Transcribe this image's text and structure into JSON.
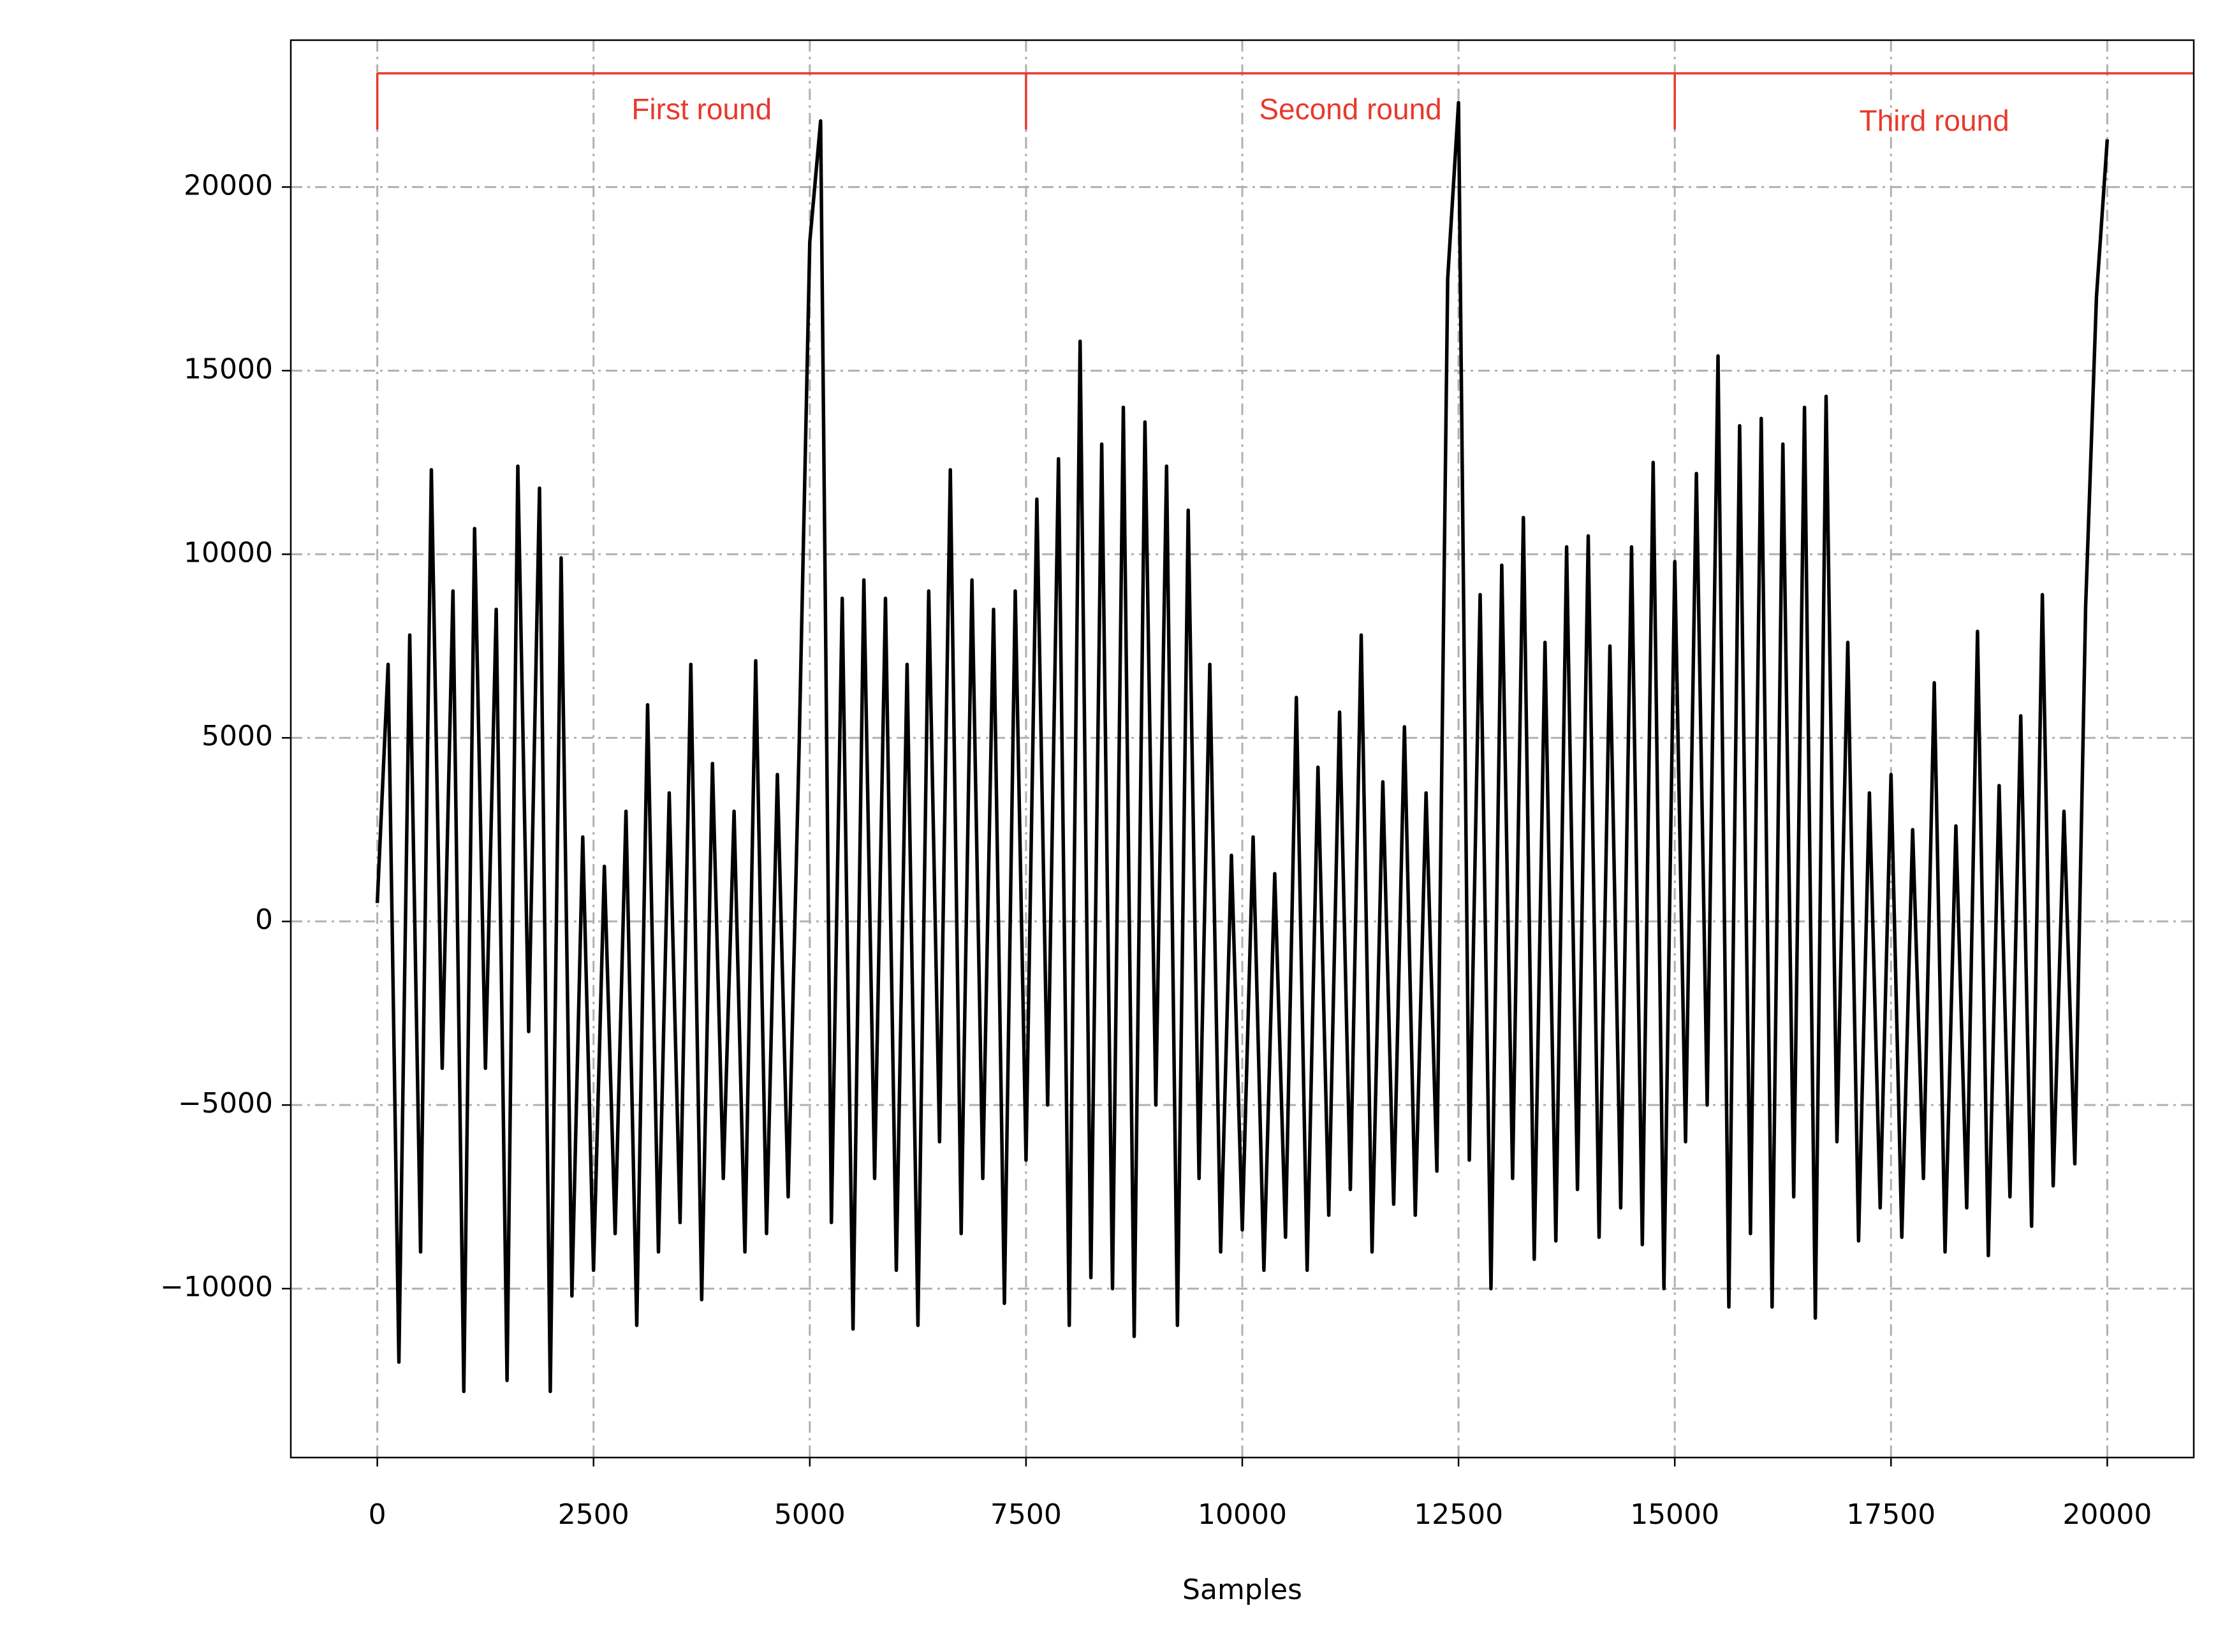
{
  "chart_data": {
    "type": "line",
    "x_label": "Samples",
    "x": [
      0,
      125,
      250,
      375,
      500,
      625,
      750,
      875,
      1000,
      1125,
      1250,
      1375,
      1500,
      1625,
      1750,
      1875,
      2000,
      2125,
      2250,
      2375,
      2500,
      2625,
      2750,
      2875,
      3000,
      3125,
      3250,
      3375,
      3500,
      3625,
      3750,
      3875,
      4000,
      4125,
      4250,
      4375,
      4500,
      4625,
      4750,
      4875,
      5000,
      5125,
      5250,
      5375,
      5500,
      5625,
      5750,
      5875,
      6000,
      6125,
      6250,
      6375,
      6500,
      6625,
      6750,
      6875,
      7000,
      7125,
      7250,
      7375,
      7500,
      7625,
      7750,
      7875,
      8000,
      8125,
      8250,
      8375,
      8500,
      8625,
      8750,
      8875,
      9000,
      9125,
      9250,
      9375,
      9500,
      9625,
      9750,
      9875,
      10000,
      10125,
      10250,
      10375,
      10500,
      10625,
      10750,
      10875,
      11000,
      11125,
      11250,
      11375,
      11500,
      11625,
      11750,
      11875,
      12000,
      12125,
      12250,
      12375,
      12500,
      12625,
      12750,
      12875,
      13000,
      13125,
      13250,
      13375,
      13500,
      13625,
      13750,
      13875,
      14000,
      14125,
      14250,
      14375,
      14500,
      14625,
      14750,
      14875,
      15000,
      15125,
      15250,
      15375,
      15500,
      15625,
      15750,
      15875,
      16000,
      16125,
      16250,
      16375,
      16500,
      16625,
      16750,
      16875,
      17000,
      17125,
      17250,
      17375,
      17500,
      17625,
      17750,
      17875,
      18000,
      18125,
      18250,
      18375,
      18500,
      18625,
      18750,
      18875,
      19000,
      19125,
      19250,
      19375,
      19500,
      19625,
      19750,
      19875,
      20000
    ],
    "series": [
      {
        "color": "#000000",
        "values": [
          500,
          7000,
          -12000,
          7800,
          -9000,
          12300,
          -4000,
          9000,
          -12800,
          10700,
          -4000,
          8500,
          -12500,
          12400,
          -3000,
          11800,
          -12800,
          9900,
          -10200,
          2300,
          -9500,
          1500,
          -8500,
          3000,
          -11000,
          5900,
          -9000,
          3500,
          -8200,
          7000,
          -10300,
          4300,
          -7000,
          3000,
          -9000,
          7100,
          -8500,
          4000,
          -7500,
          4600,
          18500,
          21800,
          -8200,
          8800,
          -11100,
          9300,
          -7000,
          8800,
          -9500,
          7000,
          -11000,
          9000,
          -6000,
          12300,
          -8500,
          9300,
          -7000,
          8500,
          -10400,
          9000,
          -6500,
          11500,
          -5000,
          12600,
          -11000,
          15800,
          -9700,
          13000,
          -10000,
          14000,
          -11300,
          13600,
          -5000,
          12400,
          -11000,
          11200,
          -7000,
          7000,
          -9000,
          1800,
          -8400,
          2300,
          -9500,
          1300,
          -8600,
          6100,
          -9500,
          4200,
          -8000,
          5700,
          -7300,
          7800,
          -9000,
          3800,
          -7700,
          5300,
          -8000,
          3500,
          -6800,
          17500,
          22300,
          -6500,
          8900,
          -10000,
          9700,
          -7000,
          11000,
          -9200,
          7600,
          -8700,
          10200,
          -7300,
          10500,
          -8600,
          7500,
          -7800,
          10200,
          -8800,
          12500,
          -10000,
          9800,
          -6000,
          12200,
          -5000,
          15400,
          -10500,
          13500,
          -8500,
          13700,
          -10500,
          13000,
          -7500,
          14000,
          -10800,
          14300,
          -6000,
          7600,
          -8700,
          3500,
          -7800,
          4000,
          -8600,
          2500,
          -7000,
          6500,
          -9000,
          2600,
          -7800,
          7900,
          -9100,
          3700,
          -7500,
          5600,
          -8300,
          8900,
          -7200,
          3000,
          -6600,
          8600,
          17000,
          21300
        ]
      }
    ],
    "segments": [
      {
        "label": "First round",
        "start": 0,
        "end": 7500,
        "color": "#e8392d"
      },
      {
        "label": "Second round",
        "start": 7500,
        "end": 15000,
        "color": "#e8392d"
      },
      {
        "label": "Third round",
        "start": 15000,
        "end": 21000,
        "color": "#e8392d"
      }
    ],
    "xlim": [
      -1000,
      21000
    ],
    "ylim": [
      -14600,
      24000
    ],
    "xticks": [
      0,
      2500,
      5000,
      7500,
      10000,
      12500,
      15000,
      17500,
      20000
    ],
    "yticks": [
      {
        "value": -10000,
        "label": "−10000"
      },
      {
        "value": -5000,
        "label": "−5000"
      },
      0,
      5000,
      10000,
      15000,
      20000
    ],
    "grid": true
  }
}
